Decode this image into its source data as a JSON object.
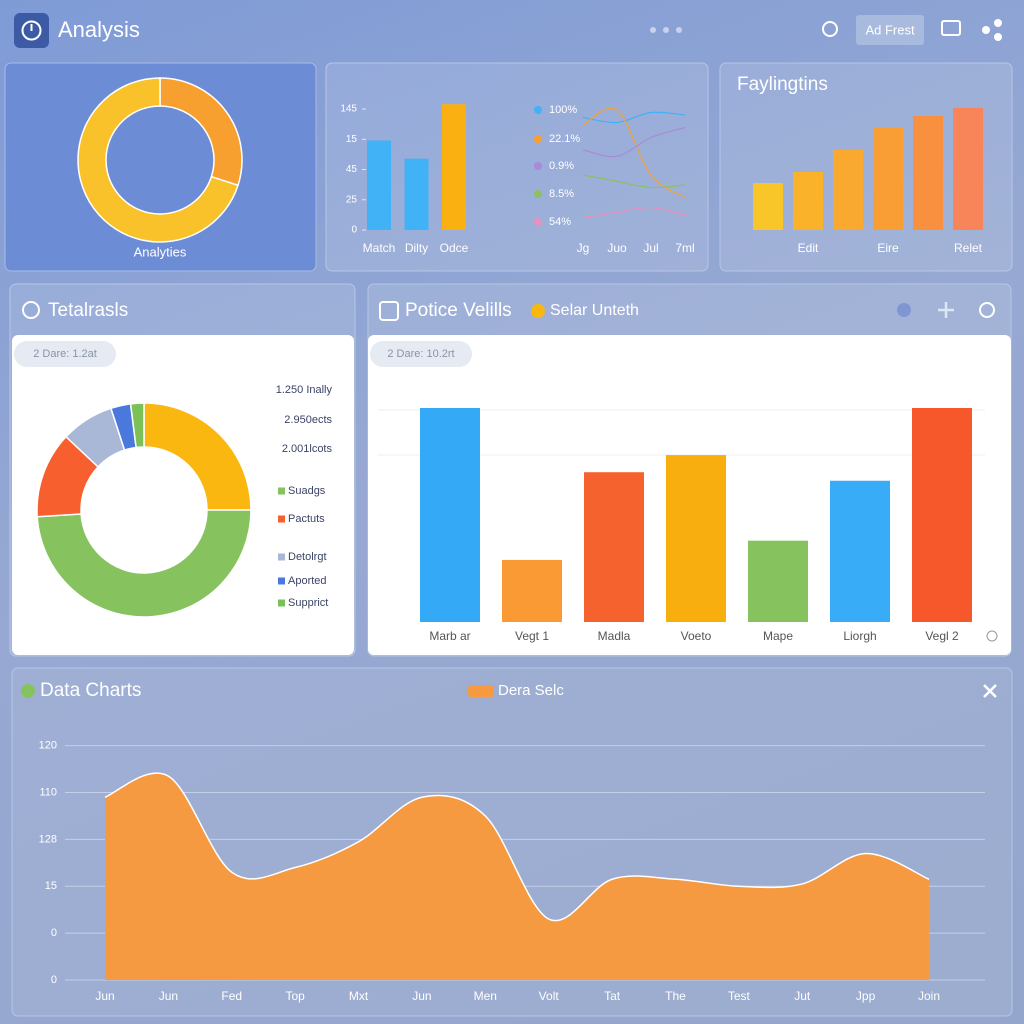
{
  "header": {
    "title": "Analysis",
    "button": "Ad Frest"
  },
  "chart_data": [
    {
      "type": "donut",
      "label": "Analyties",
      "values": [
        30,
        70
      ],
      "colors": [
        "#f7a030",
        "#f9c22a"
      ]
    },
    {
      "type": "bar",
      "categories": [
        "Match",
        "Dilty",
        "Odce"
      ],
      "values": [
        74,
        59,
        104
      ],
      "colors": [
        "#40b2f5",
        "#40b2f5",
        "#f9b010"
      ],
      "ylim": [
        0,
        105
      ],
      "yticks": [
        0,
        25,
        {
          "value": 50,
          "label": "45"
        },
        {
          "value": 75,
          "label": "15"
        },
        {
          "value": 100,
          "label": "145"
        }
      ]
    },
    {
      "type": "line",
      "categories": [
        "Jg",
        "Juo",
        "Jul",
        "7ml"
      ],
      "ylim": [
        0,
        100
      ],
      "series": [
        {
          "name": "100%",
          "color": "#40b2f5",
          "values": [
            86,
            82,
            90,
            88
          ]
        },
        {
          "name": "22.1%",
          "color": "#f7a030",
          "values": [
            80,
            92,
            40,
            22
          ]
        },
        {
          "name": "0.9%",
          "color": "#a98ad8",
          "values": [
            60,
            55,
            70,
            78
          ]
        },
        {
          "name": "8.5%",
          "color": "#8cc060",
          "values": [
            40,
            35,
            30,
            32
          ]
        },
        {
          "name": "54%",
          "color": "#e890c0",
          "values": [
            6,
            10,
            14,
            8
          ]
        }
      ]
    },
    {
      "type": "bar",
      "title": "Faylingtins",
      "categories": [
        null,
        "Edit",
        null,
        "Eire",
        null,
        "Relet"
      ],
      "values": [
        47,
        58,
        80,
        102,
        114,
        122
      ],
      "colors": [
        "#f9c62a",
        "#f9b22a",
        "#f9a830",
        "#f99d35",
        "#f9903f",
        "#f8845a"
      ],
      "ylim": [
        0,
        130
      ]
    },
    {
      "type": "donut",
      "title": "Tetalrasls",
      "chip": "2 Dare: 1.2at",
      "annotations": [
        "1.250 Inally",
        "2.950ects",
        "2.001lcots"
      ],
      "categories": [
        null,
        "Suadgs",
        "Pactuts",
        "Detolrgt",
        "Aported",
        "Supprict"
      ],
      "values": [
        25,
        49,
        13,
        8,
        3,
        2
      ],
      "colors": [
        "#f9b710",
        "#86c25e",
        "#f7602e",
        "#a9b8d6",
        "#4a78dd",
        "#7cc058"
      ]
    },
    {
      "type": "bar",
      "title": "Potice Velills",
      "legend": "Selar Unteth",
      "chip": "2 Dare: 10.2rt",
      "categories": [
        "Marb ar",
        "Vegt 1",
        "Madla",
        "Voeto",
        "Mape",
        "Liorgh",
        "Vegl 2"
      ],
      "values": [
        100,
        29,
        70,
        78,
        38,
        66,
        100
      ],
      "colors": [
        "#34aaf6",
        "#f99a35",
        "#f6622e",
        "#f9ae10",
        "#86c25e",
        "#38acf6",
        "#f6582c"
      ],
      "ylim": [
        0,
        100
      ]
    },
    {
      "type": "area",
      "title": "Data Charts",
      "grid": true,
      "categories": [
        "Jun",
        "Jun",
        "Fed",
        "Top",
        "Mxt",
        "Jun",
        "Men",
        "Volt",
        "Tat",
        "The",
        "Test",
        "Jut",
        "Jpp",
        "Join"
      ],
      "series": [
        {
          "name": "Dera Selc",
          "color": "#f59a40",
          "values": [
            78,
            87,
            46,
            48,
            59,
            78,
            70,
            26,
            43,
            43,
            40,
            41,
            54,
            43
          ]
        }
      ],
      "ylim": [
        0,
        102
      ],
      "yticks": [
        0,
        {
          "value": 20,
          "label": "0"
        },
        {
          "value": 40,
          "label": "15"
        },
        {
          "value": 60,
          "label": "128"
        },
        {
          "value": 80,
          "label": "110"
        },
        {
          "value": 100,
          "label": "120"
        }
      ]
    }
  ]
}
